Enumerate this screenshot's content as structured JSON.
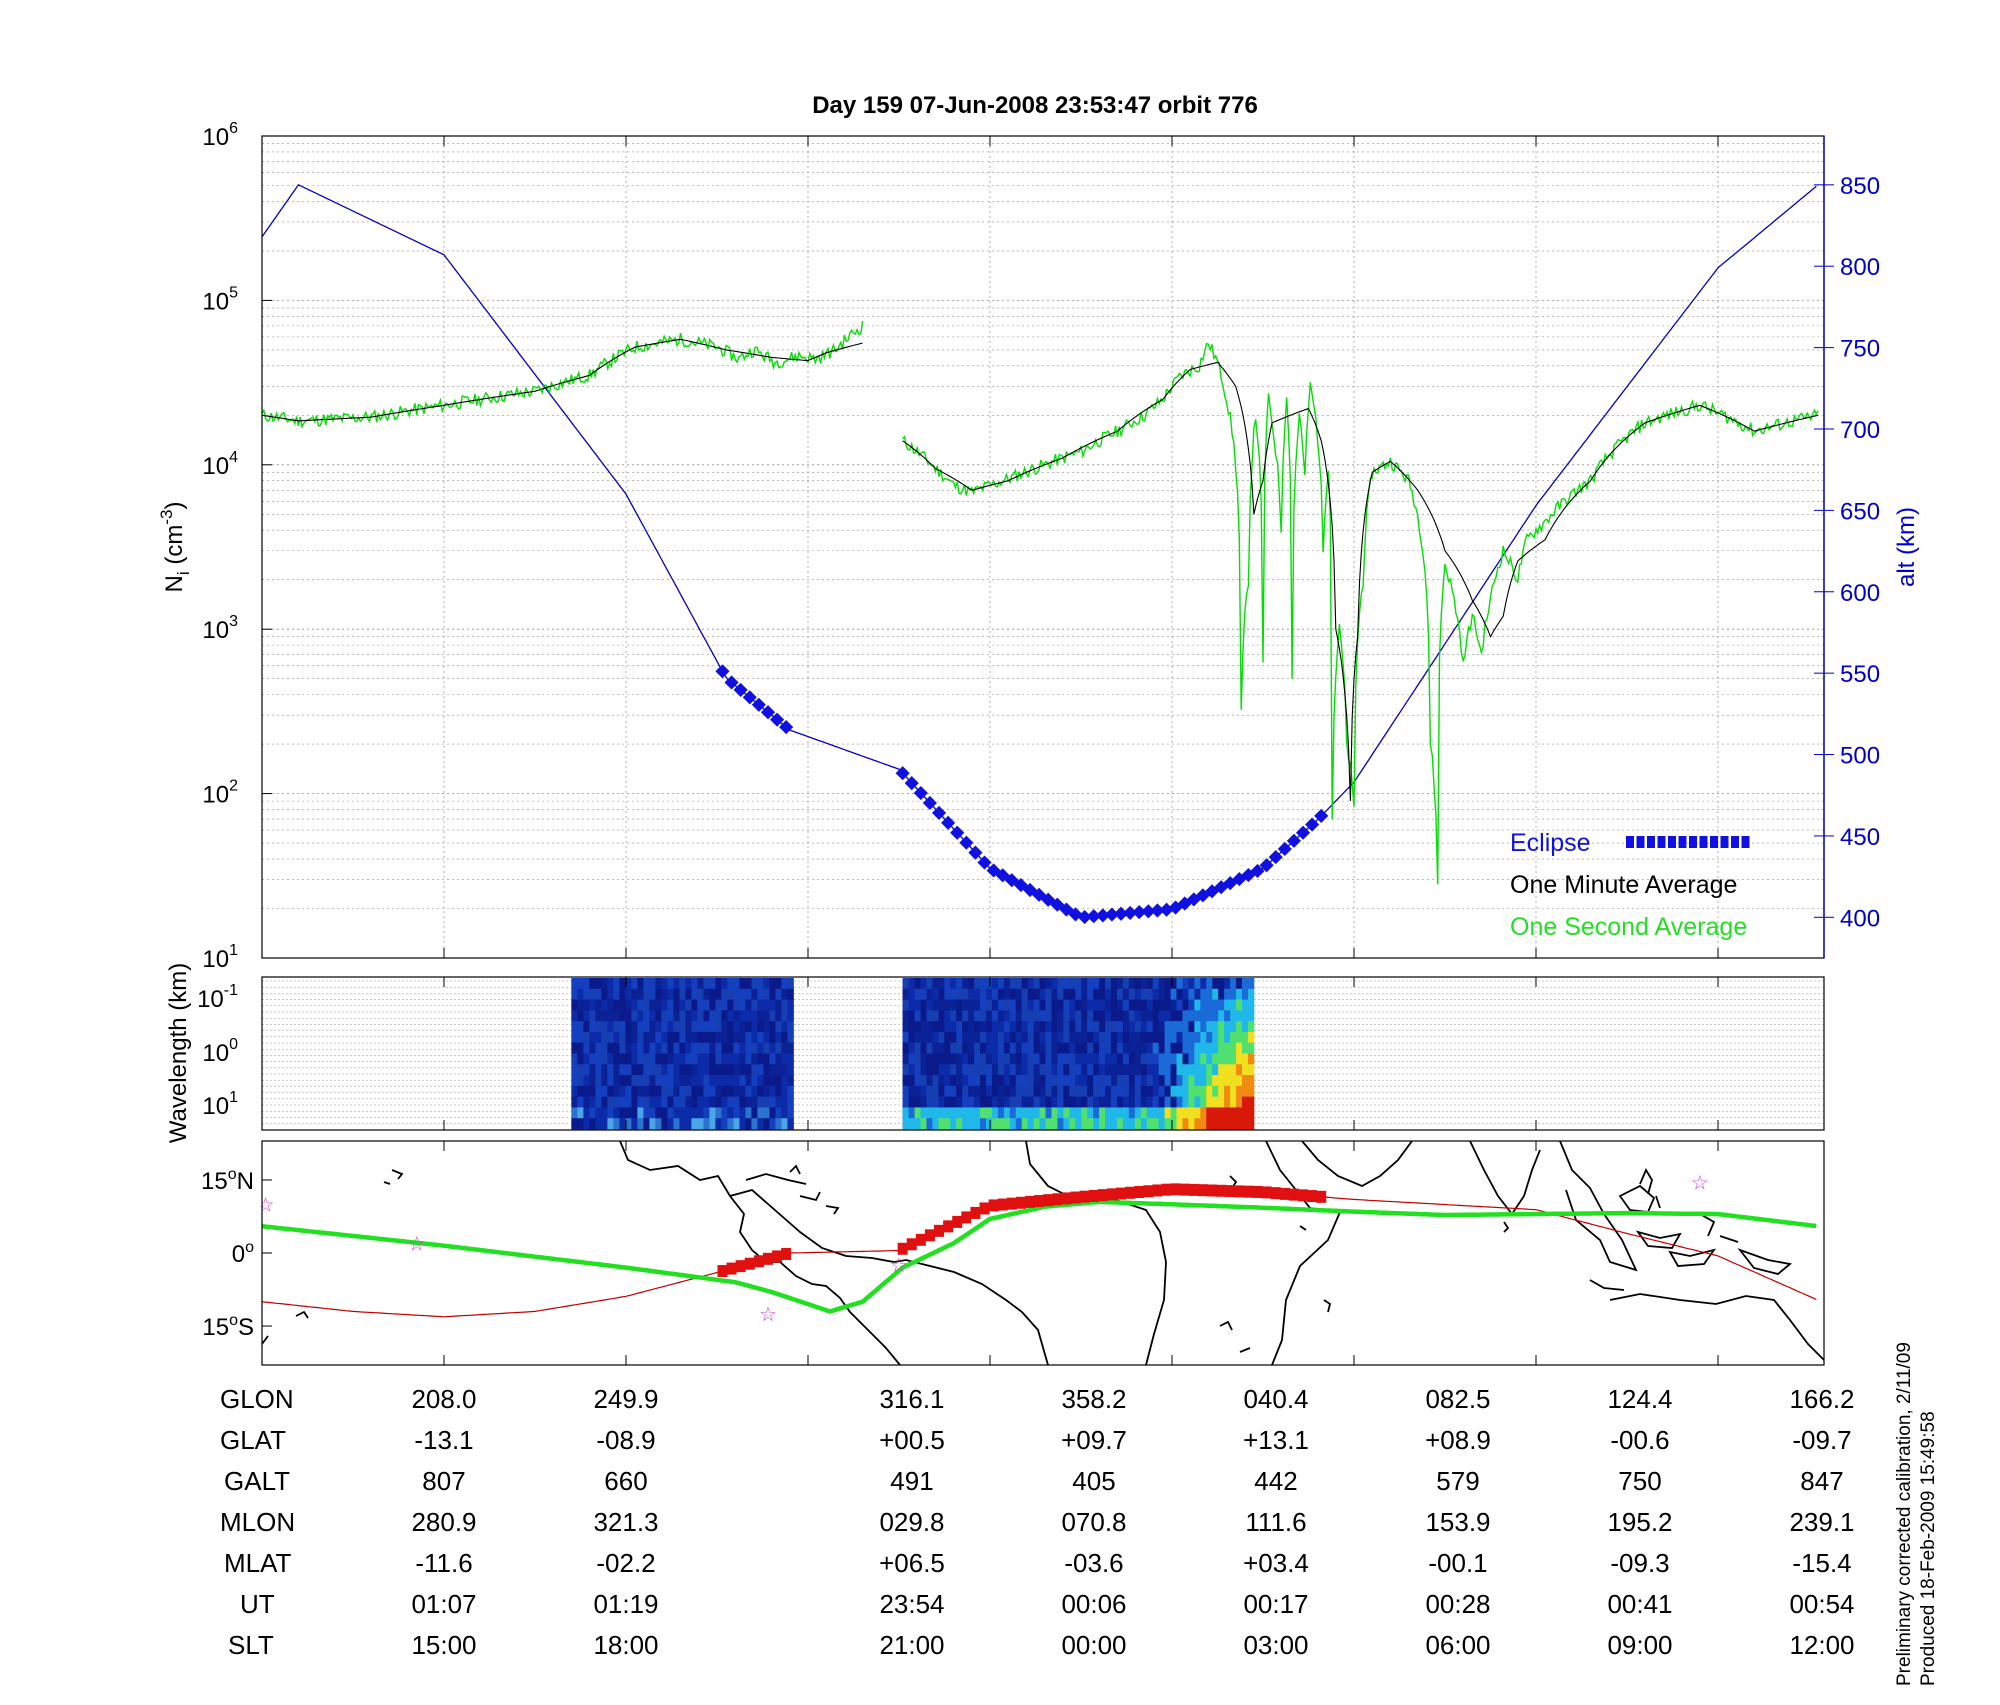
{
  "title": "Day 159  07-Jun-2008 23:53:47   orbit 776",
  "footer_lines": [
    "Preliminary corrected calibration, 2/11/09",
    "Produced 18-Feb-2009 15:49:58"
  ],
  "colors": {
    "axis": "#000000",
    "alt_line": "#0000c8",
    "eclipse": "#1010e0",
    "minute_avg": "#000000",
    "second_avg": "#00e000",
    "ground_track": "#20e020",
    "mag_track": "#c00000",
    "mag_eclipse": "#e01010",
    "grid": "#909090",
    "star": "#d040d0"
  },
  "chart_data": [
    {
      "type": "line",
      "panel": "ion-density",
      "ylabel": "Ni (cm-3)",
      "ylabel_main": "N",
      "ylabel_sub": "i",
      "ylabel_rest": " (cm",
      "ylabel_exp": "-3",
      "ylabel_close": ")",
      "yscale": "log",
      "ylim": [
        10,
        1000000
      ],
      "y_ticks": [
        {
          "base": "10",
          "exp": "6",
          "value": 1000000
        },
        {
          "base": "10",
          "exp": "5",
          "value": 100000
        },
        {
          "base": "10",
          "exp": "4",
          "value": 10000
        },
        {
          "base": "10",
          "exp": "3",
          "value": 1000
        },
        {
          "base": "10",
          "exp": "2",
          "value": 100
        },
        {
          "base": "10",
          "exp": "1",
          "value": 10
        }
      ],
      "y2label": "alt (km)",
      "y2lim": [
        375,
        880
      ],
      "y2_ticks": [
        "850",
        "800",
        "750",
        "700",
        "650",
        "600",
        "550",
        "500",
        "450",
        "400"
      ],
      "xlim": [
        0,
        8.55
      ],
      "legend": {
        "position": "bottom-right",
        "entries": [
          {
            "label": "Eclipse",
            "series": "eclipse"
          },
          {
            "label": "One Minute Average",
            "series": "minute"
          },
          {
            "label": "One Second Average",
            "series": "second"
          }
        ]
      },
      "altitude_anchors": [
        [
          0,
          818
        ],
        [
          0.2,
          850
        ],
        [
          1,
          807
        ],
        [
          2,
          660
        ],
        [
          2.55,
          547
        ],
        [
          2.9,
          515
        ],
        [
          3.5,
          491
        ],
        [
          4,
          430
        ],
        [
          4.5,
          400
        ],
        [
          5,
          405
        ],
        [
          5.5,
          430
        ],
        [
          5.8,
          460
        ],
        [
          6,
          483
        ],
        [
          7,
          653
        ],
        [
          8,
          799
        ],
        [
          8.55,
          850
        ]
      ],
      "eclipse_segments": [
        [
          2.53,
          2.92
        ],
        [
          3.52,
          5.85
        ]
      ],
      "density_minute_anchors": [
        [
          [
            0,
            20000
          ],
          [
            0.2,
            18500
          ],
          [
            0.6,
            19500
          ],
          [
            1,
            23000
          ],
          [
            1.5,
            28000
          ],
          [
            1.8,
            35000
          ],
          [
            2.05,
            52000
          ],
          [
            2.3,
            58000
          ],
          [
            2.55,
            50000
          ],
          [
            2.8,
            45000
          ],
          [
            3.0,
            43000
          ],
          [
            3.1,
            48000
          ],
          [
            3.3,
            55000
          ]
        ],
        [
          [
            3.52,
            14000
          ],
          [
            3.7,
            9500
          ],
          [
            3.9,
            7000
          ],
          [
            4.1,
            8000
          ],
          [
            4.4,
            11000
          ],
          [
            4.7,
            16000
          ],
          [
            4.95,
            25000
          ],
          [
            5.1,
            38000
          ],
          [
            5.25,
            42000
          ],
          [
            5.35,
            30000
          ],
          [
            5.45,
            5000
          ],
          [
            5.5,
            8000
          ],
          [
            5.55,
            18000
          ],
          [
            5.65,
            20000
          ],
          [
            5.75,
            22000
          ],
          [
            5.82,
            14000
          ],
          [
            5.9,
            1000
          ],
          [
            5.95,
            400
          ],
          [
            5.98,
            90
          ],
          [
            6.02,
            900
          ],
          [
            6.1,
            9000
          ],
          [
            6.2,
            10500
          ],
          [
            6.35,
            7000
          ],
          [
            6.5,
            3000
          ],
          [
            6.65,
            1500
          ],
          [
            6.75,
            900
          ],
          [
            6.82,
            1200
          ],
          [
            6.9,
            2600
          ],
          [
            7.05,
            3500
          ],
          [
            7.3,
            8000
          ],
          [
            7.6,
            18000
          ],
          [
            7.9,
            23000
          ],
          [
            8.2,
            16000
          ],
          [
            8.55,
            20000
          ]
        ]
      ],
      "density_second_anchors": [
        [
          [
            0,
            20000
          ],
          [
            0.2,
            18500
          ],
          [
            0.6,
            19500
          ],
          [
            1,
            23000
          ],
          [
            1.5,
            28000
          ],
          [
            1.8,
            35000
          ],
          [
            2.05,
            52000
          ],
          [
            2.3,
            58000
          ],
          [
            2.5,
            52000
          ],
          [
            2.62,
            44000
          ],
          [
            2.7,
            50000
          ],
          [
            2.82,
            42000
          ],
          [
            2.95,
            46000
          ],
          [
            3.05,
            44000
          ],
          [
            3.15,
            50000
          ],
          [
            3.3,
            70000
          ]
        ],
        [
          [
            3.52,
            14000
          ],
          [
            3.6,
            12000
          ],
          [
            3.7,
            9500
          ],
          [
            3.8,
            7500
          ],
          [
            3.9,
            6800
          ],
          [
            4.0,
            7500
          ],
          [
            4.1,
            8200
          ],
          [
            4.3,
            10000
          ],
          [
            4.5,
            12000
          ],
          [
            4.7,
            16000
          ],
          [
            4.85,
            20000
          ],
          [
            4.95,
            25000
          ],
          [
            5.05,
            35000
          ],
          [
            5.15,
            40000
          ],
          [
            5.2,
            55000
          ],
          [
            5.25,
            42000
          ],
          [
            5.3,
            25000
          ],
          [
            5.35,
            10000
          ],
          [
            5.38,
            300
          ],
          [
            5.42,
            2000
          ],
          [
            5.46,
            20000
          ],
          [
            5.5,
            600
          ],
          [
            5.53,
            25000
          ],
          [
            5.56,
            15000
          ],
          [
            5.6,
            4000
          ],
          [
            5.63,
            25000
          ],
          [
            5.66,
            500
          ],
          [
            5.7,
            20000
          ],
          [
            5.73,
            8000
          ],
          [
            5.76,
            30000
          ],
          [
            5.8,
            15000
          ],
          [
            5.83,
            3000
          ],
          [
            5.86,
            10000
          ],
          [
            5.88,
            70
          ],
          [
            5.92,
            1000
          ],
          [
            5.96,
            200
          ],
          [
            6.0,
            80
          ],
          [
            6.05,
            2000
          ],
          [
            6.1,
            9000
          ],
          [
            6.2,
            10500
          ],
          [
            6.3,
            8000
          ],
          [
            6.38,
            3000
          ],
          [
            6.42,
            200
          ],
          [
            6.46,
            30
          ],
          [
            6.5,
            2500
          ],
          [
            6.55,
            1500
          ],
          [
            6.6,
            600
          ],
          [
            6.65,
            1200
          ],
          [
            6.7,
            700
          ],
          [
            6.75,
            1500
          ],
          [
            6.82,
            3000
          ],
          [
            6.9,
            2000
          ],
          [
            6.95,
            3500
          ],
          [
            7.05,
            4500
          ],
          [
            7.3,
            8000
          ],
          [
            7.6,
            18000
          ],
          [
            7.9,
            23000
          ],
          [
            8.2,
            16000
          ],
          [
            8.55,
            20000
          ]
        ]
      ]
    },
    {
      "type": "heatmap",
      "panel": "irregularity-spectrogram",
      "ylabel": "Wavelength (km)",
      "y_ticks": [
        {
          "base": "10",
          "exp": "-1"
        },
        {
          "base": "10",
          "exp": "0"
        },
        {
          "base": "10",
          "exp": "1"
        }
      ],
      "blocks": [
        {
          "x_range": [
            1.7,
            2.92
          ],
          "intensity": "low"
        },
        {
          "x_range": [
            3.52,
            5.45
          ],
          "intensity": "high-toward-end"
        }
      ]
    },
    {
      "type": "map",
      "panel": "orbit-ground-track",
      "y_ticks": [
        {
          "deg": "15",
          "hem": "N"
        },
        {
          "deg": "0",
          "hem": ""
        },
        {
          "deg": "15",
          "hem": "S"
        }
      ],
      "ylim": [
        -23,
        23
      ],
      "ground_track": [
        [
          0,
          5.5
        ],
        [
          0.5,
          3.5
        ],
        [
          1,
          1.5
        ],
        [
          2,
          -3
        ],
        [
          2.6,
          -6
        ],
        [
          2.8,
          -8
        ],
        [
          3.12,
          -12
        ],
        [
          3.3,
          -10
        ],
        [
          3.52,
          -3
        ],
        [
          3.8,
          2
        ],
        [
          4,
          7
        ],
        [
          4.3,
          9.5
        ],
        [
          4.6,
          10.5
        ],
        [
          5,
          10
        ],
        [
          5.5,
          9.3
        ],
        [
          6,
          8.5
        ],
        [
          6.5,
          7.8
        ],
        [
          7,
          8
        ],
        [
          7.5,
          8.2
        ],
        [
          8,
          8
        ],
        [
          8.55,
          5.5
        ]
      ],
      "magnetic_equator_track": [
        [
          0,
          -10
        ],
        [
          0.5,
          -12
        ],
        [
          1,
          -13.1
        ],
        [
          1.5,
          -12
        ],
        [
          2,
          -8.9
        ],
        [
          2.5,
          -4
        ],
        [
          2.9,
          0
        ],
        [
          3.5,
          0.5
        ],
        [
          4,
          9.7
        ],
        [
          4.5,
          11.5
        ],
        [
          5,
          13.1
        ],
        [
          5.5,
          12.5
        ],
        [
          6,
          11
        ],
        [
          7,
          8.9
        ],
        [
          7.5,
          4
        ],
        [
          8,
          -0.6
        ],
        [
          8.55,
          -9.7
        ]
      ],
      "eclipse_segments": [
        [
          2.53,
          2.92
        ],
        [
          3.52,
          5.85
        ]
      ],
      "stars": [
        [
          0.02,
          10
        ],
        [
          0.85,
          2
        ],
        [
          2.78,
          -12.5
        ],
        [
          3.5,
          -2.5
        ],
        [
          7.9,
          14.5
        ]
      ]
    }
  ],
  "table": {
    "row_labels": [
      "GLON",
      "GLAT",
      "GALT",
      "MLON",
      "MLAT",
      "UT",
      "SLT"
    ],
    "columns": [
      [
        "208.0",
        "-13.1",
        "807",
        "280.9",
        "-11.6",
        "01:07",
        "15:00"
      ],
      [
        "249.9",
        "-08.9",
        "660",
        "321.3",
        "-02.2",
        "01:19",
        "18:00"
      ],
      [
        "316.1",
        "+00.5",
        "491",
        "029.8",
        "+06.5",
        "23:54",
        "21:00"
      ],
      [
        "358.2",
        "+09.7",
        "405",
        "070.8",
        "-03.6",
        "00:06",
        "00:00"
      ],
      [
        "040.4",
        "+13.1",
        "442",
        "111.6",
        "+03.4",
        "00:17",
        "03:00"
      ],
      [
        "082.5",
        "+08.9",
        "579",
        "153.9",
        "-00.1",
        "00:28",
        "06:00"
      ],
      [
        "124.4",
        "-00.6",
        "750",
        "195.2",
        "-09.3",
        "00:41",
        "09:00"
      ],
      [
        "166.2",
        "-09.7",
        "847",
        "239.1",
        "-15.4",
        "00:54",
        "12:00"
      ]
    ]
  }
}
